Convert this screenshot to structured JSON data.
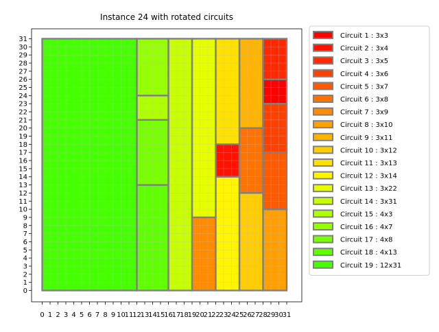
{
  "chart_data": {
    "type": "rectangle-packing",
    "title": "Instance 24 with rotated circuits",
    "xlim": [
      0,
      31
    ],
    "ylim": [
      0,
      31
    ],
    "x_ticks": [
      "0",
      "1",
      "2",
      "3",
      "4",
      "5",
      "6",
      "7",
      "8",
      "9",
      "10",
      "11",
      "12",
      "13",
      "14",
      "15",
      "16",
      "17",
      "18",
      "19",
      "20",
      "21",
      "22",
      "23",
      "24",
      "25",
      "26",
      "27",
      "28",
      "29",
      "30",
      "31"
    ],
    "y_ticks": [
      "0",
      "1",
      "2",
      "3",
      "4",
      "5",
      "6",
      "7",
      "8",
      "9",
      "10",
      "11",
      "12",
      "13",
      "14",
      "15",
      "16",
      "17",
      "18",
      "19",
      "20",
      "21",
      "22",
      "23",
      "24",
      "25",
      "26",
      "27",
      "28",
      "29",
      "30",
      "31"
    ],
    "grid": true,
    "legend_position": "right",
    "circuits": [
      {
        "label": "Circuit 1 : 3x3",
        "x": 28,
        "y": 23,
        "w": 3,
        "h": 3,
        "color": "#ff0000"
      },
      {
        "label": "Circuit 2 : 3x4",
        "x": 22,
        "y": 14,
        "w": 3,
        "h": 4,
        "color": "#ff1300"
      },
      {
        "label": "Circuit 3 : 3x5",
        "x": 28,
        "y": 26,
        "w": 3,
        "h": 5,
        "color": "#ff2800"
      },
      {
        "label": "Circuit 4 : 3x6",
        "x": 28,
        "y": 17,
        "w": 3,
        "h": 6,
        "color": "#ff4100"
      },
      {
        "label": "Circuit 5 : 3x7",
        "x": 28,
        "y": 10,
        "w": 3,
        "h": 7,
        "color": "#ff5a00"
      },
      {
        "label": "Circuit 6 : 3x8",
        "x": 25,
        "y": 12,
        "w": 3,
        "h": 8,
        "color": "#ff7300"
      },
      {
        "label": "Circuit 7 : 3x9",
        "x": 19,
        "y": 0,
        "w": 3,
        "h": 9,
        "color": "#ff8c00"
      },
      {
        "label": "Circuit 8 : 3x10",
        "x": 28,
        "y": 0,
        "w": 3,
        "h": 10,
        "color": "#ffa000"
      },
      {
        "label": "Circuit 9 : 3x11",
        "x": 25,
        "y": 20,
        "w": 3,
        "h": 11,
        "color": "#ffb400"
      },
      {
        "label": "Circuit 10 : 3x12",
        "x": 25,
        "y": 0,
        "w": 3,
        "h": 12,
        "color": "#ffcd00"
      },
      {
        "label": "Circuit 11 : 3x13",
        "x": 22,
        "y": 18,
        "w": 3,
        "h": 13,
        "color": "#ffe100"
      },
      {
        "label": "Circuit 12 : 3x14",
        "x": 22,
        "y": 0,
        "w": 3,
        "h": 14,
        "color": "#fff500"
      },
      {
        "label": "Circuit 13 : 3x22",
        "x": 19,
        "y": 9,
        "w": 3,
        "h": 22,
        "color": "#e6ff00"
      },
      {
        "label": "Circuit 14 : 3x31",
        "x": 16,
        "y": 0,
        "w": 3,
        "h": 31,
        "color": "#c8ff00"
      },
      {
        "label": "Circuit 15 : 4x3",
        "x": 12,
        "y": 21,
        "w": 4,
        "h": 3,
        "color": "#afff00"
      },
      {
        "label": "Circuit 16 : 4x7",
        "x": 12,
        "y": 24,
        "w": 4,
        "h": 7,
        "color": "#96ff00"
      },
      {
        "label": "Circuit 17 : 4x8",
        "x": 12,
        "y": 13,
        "w": 4,
        "h": 8,
        "color": "#78ff00"
      },
      {
        "label": "Circuit 18 : 4x13",
        "x": 12,
        "y": 0,
        "w": 4,
        "h": 13,
        "color": "#5fff00"
      },
      {
        "label": "Circuit 19 : 12x31",
        "x": 0,
        "y": 0,
        "w": 12,
        "h": 31,
        "color": "#46ff00"
      }
    ]
  },
  "colors": {
    "edge": "#808080",
    "grid": "#bdbdbd",
    "legend_border": "#cccccc"
  }
}
